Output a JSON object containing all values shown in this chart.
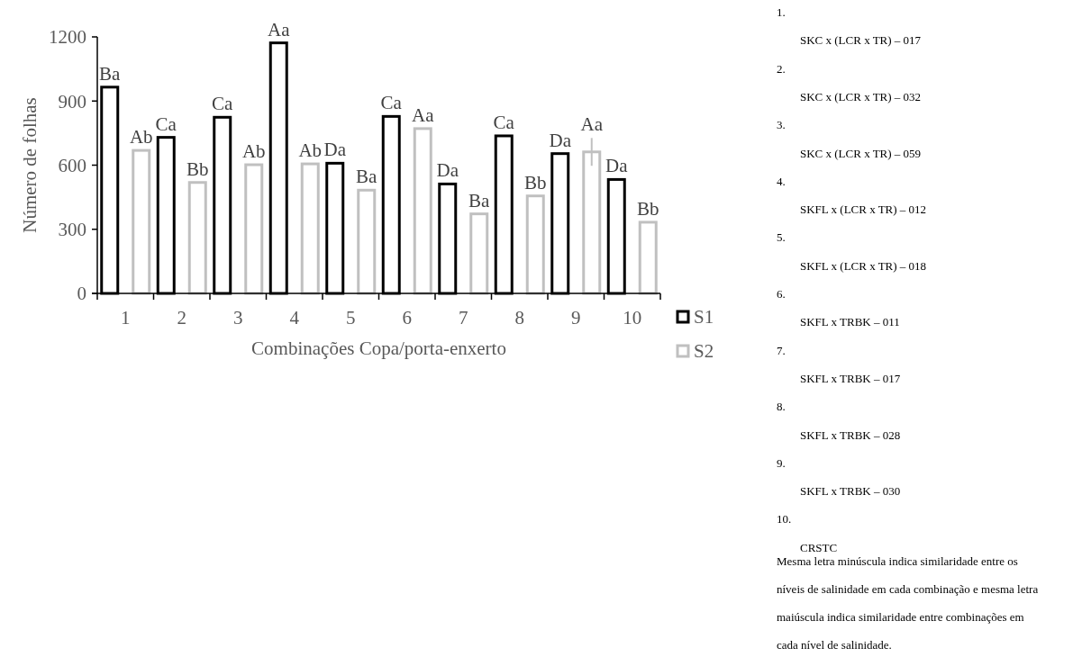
{
  "chart_data": {
    "type": "bar",
    "xlabel": "Combinações Copa/porta-enxerto",
    "ylabel": "Número de folhas",
    "categories": [
      "1",
      "2",
      "3",
      "4",
      "5",
      "6",
      "7",
      "8",
      "9",
      "10"
    ],
    "series": [
      {
        "name": "S1",
        "color": "#000000",
        "values": [
          965,
          730,
          824,
          1172,
          609,
          828,
          512,
          737,
          654,
          533
        ],
        "value_labels": [
          "Ba",
          "Ca",
          "Ca",
          "Aa",
          "Da",
          "Ca",
          "Da",
          "Ca",
          "Da",
          "Da"
        ]
      },
      {
        "name": "S2",
        "color": "#c0c0c0",
        "values": [
          669,
          519,
          602,
          606,
          483,
          771,
          372,
          456,
          662,
          333
        ],
        "value_labels": [
          "Ab",
          "Bb",
          "Ab",
          "Ab",
          "Ba",
          "Aa",
          "Ba",
          "Bb",
          "Aa",
          "Bb"
        ],
        "errors": [
          null,
          null,
          null,
          null,
          null,
          null,
          null,
          null,
          65,
          null
        ]
      }
    ],
    "ylim": [
      0,
      1200
    ],
    "yticks": [
      0,
      300,
      600,
      900,
      1200
    ],
    "grid": false,
    "legend": "bottom right",
    "annotations": [
      "1.",
      "SKC x (LCR x TR) – 017",
      "2.",
      "SKC x (LCR x TR) – 032",
      "3.",
      "SKC x (LCR x TR) – 059",
      "4.",
      "SKFL x (LCR x TR) – 012",
      "5.",
      "SKFL x (LCR x TR) – 018",
      "6.",
      "SKFL x TRBK – 011",
      "7.",
      "SKFL x TRBK – 017",
      "8.",
      "SKFL x TRBK – 028",
      "9.",
      "SKFL x TRBK – 030",
      "10.",
      "CRSTC",
      "Mesma letra minúscula indica similaridade entre os níveis de salinidade em cada combinação e mesma letra maiúscula indica similaridade entre combinações em cada nível de salinidade."
    ]
  }
}
